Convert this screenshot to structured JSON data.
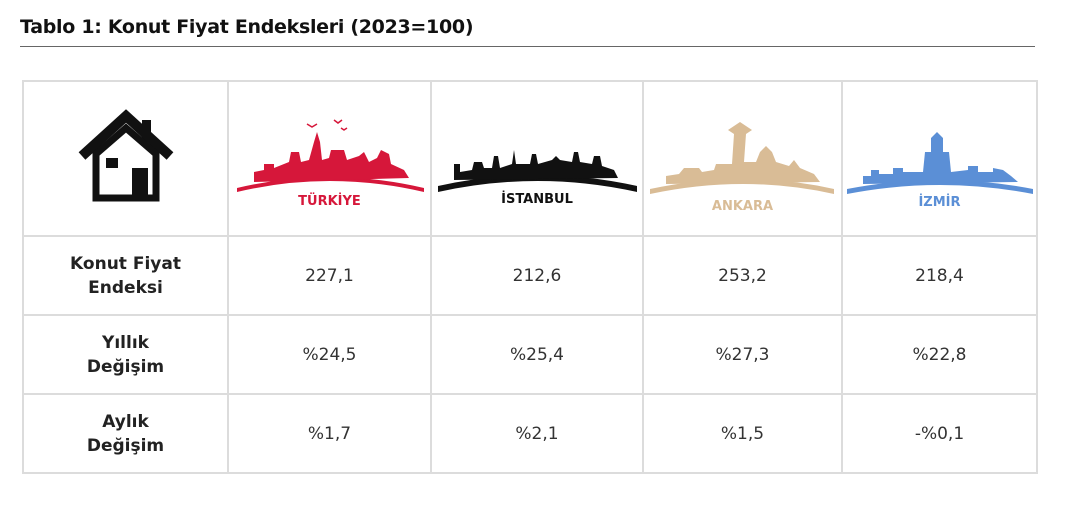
{
  "header": {
    "title": "Tablo 1: Konut Fiyat Endeksleri (2023=100)"
  },
  "table": {
    "columns": [
      "TÜRKİYE",
      "İSTANBUL",
      "ANKARA",
      "İZMİR"
    ],
    "rows": [
      {
        "label": "Konut Fiyat Endeksi",
        "cells": [
          "227,1",
          "212,6",
          "253,2",
          "218,4"
        ]
      },
      {
        "label": "Yıllık Değişim",
        "cells": [
          "%24,5",
          "%25,4",
          "%27,3",
          "%22,8"
        ]
      },
      {
        "label": "Aylık Değişim",
        "cells": [
          "%1,7",
          "%2,1",
          "%1,5",
          "-%0,1"
        ]
      }
    ]
  }
}
